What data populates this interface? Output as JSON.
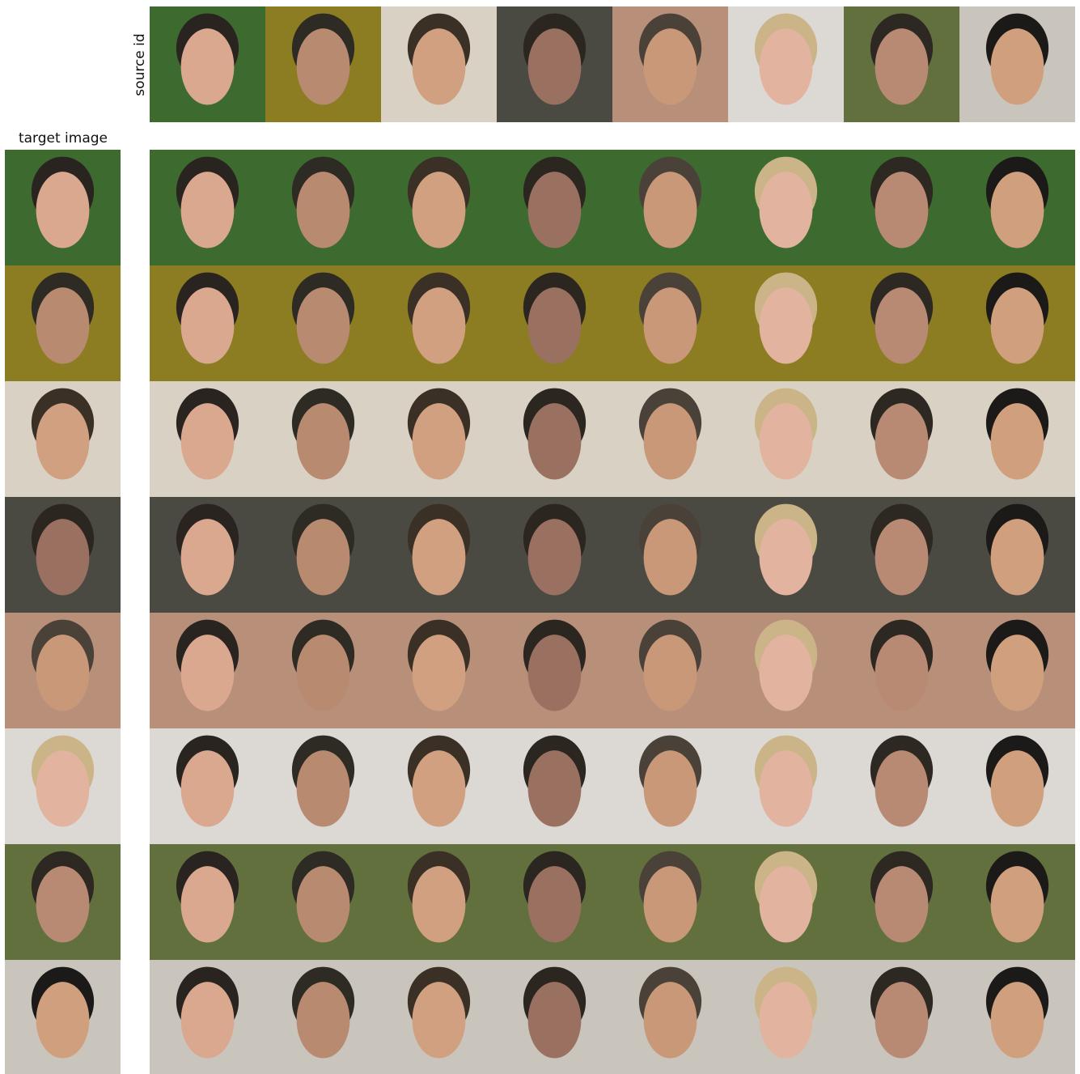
{
  "labels": {
    "source": "source id",
    "target": "target image"
  }
}
